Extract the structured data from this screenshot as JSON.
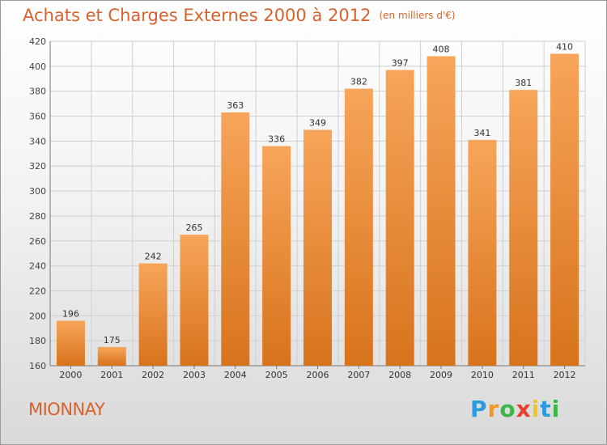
{
  "header": {
    "title": "Achats et Charges Externes 2000 à 2012",
    "subtitle": "(en milliers d'€)"
  },
  "footer": {
    "commune": "MIONNAY",
    "logo": "Proxiti"
  },
  "colors": {
    "accent": "#d6622d",
    "bar_light": "#f7a55a",
    "bar_dark": "#d8731c",
    "logo_letters": [
      "#2b9be0",
      "#f29a1f",
      "#3db54a",
      "#e83e2c",
      "#f2c21f",
      "#2b9be0",
      "#3db54a"
    ]
  },
  "chart_data": {
    "type": "bar",
    "title": "Achats et Charges Externes 2000 à 2012",
    "subtitle": "(en milliers d'€)",
    "categories": [
      "2000",
      "2001",
      "2002",
      "2003",
      "2004",
      "2005",
      "2006",
      "2007",
      "2008",
      "2009",
      "2010",
      "2011",
      "2012"
    ],
    "values": [
      196,
      175,
      242,
      265,
      363,
      336,
      349,
      382,
      397,
      408,
      341,
      381,
      410
    ],
    "ylim": [
      160,
      420
    ],
    "yticks": [
      160,
      180,
      200,
      220,
      240,
      260,
      280,
      300,
      320,
      340,
      360,
      380,
      400,
      420
    ],
    "grid": true,
    "legend": "none"
  }
}
